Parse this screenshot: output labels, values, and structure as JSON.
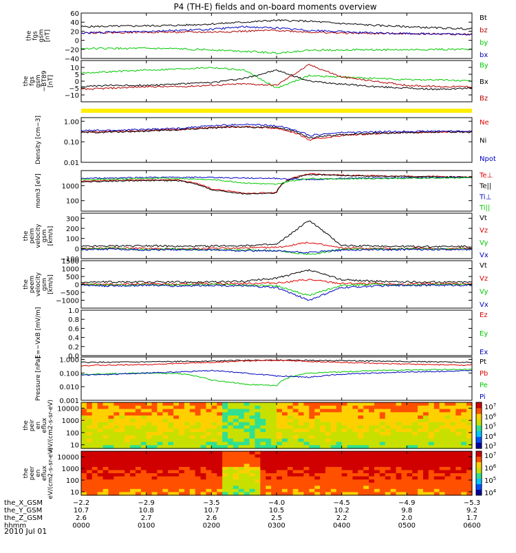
{
  "title": "P4 (TH-E) fields and on-board moments overview",
  "date": "2010 Jul 01",
  "colorbar": {
    "colors": [
      "#0000a0",
      "#0050ff",
      "#00c8ff",
      "#30e090",
      "#c8e000",
      "#ffd000",
      "#ff5000",
      "#d00000",
      "#000000"
    ]
  },
  "chart_data": [
    {
      "type": "line",
      "ylabel": "the fgs gsm [nT]",
      "ylim": [
        -40,
        60
      ],
      "yticks": [
        {
          "v": 60,
          "label": "60"
        },
        {
          "v": 40,
          "label": "40"
        },
        {
          "v": 20,
          "label": "20"
        },
        {
          "v": 0,
          "label": "0"
        },
        {
          "v": -20,
          "label": "−20"
        },
        {
          "v": -40,
          "label": "−40"
        }
      ],
      "x": [
        0,
        30,
        60,
        90,
        120,
        150,
        180,
        210,
        240,
        270,
        300,
        330,
        360
      ],
      "series": [
        {
          "name": "Bt",
          "color": "#000000",
          "values": [
            30,
            31,
            32,
            33,
            36,
            40,
            44,
            42,
            37,
            33,
            30,
            27,
            25
          ]
        },
        {
          "name": "bz",
          "color": "#b00000",
          "values": [
            17,
            17,
            18,
            18,
            18,
            20,
            22,
            18,
            16,
            15,
            15,
            14,
            13
          ]
        },
        {
          "name": "by",
          "color": "#00c800",
          "values": [
            -18,
            -18,
            -18,
            -19,
            -21,
            -24,
            -28,
            -22,
            -21,
            -21,
            -21,
            -20,
            -20
          ]
        },
        {
          "name": "bx",
          "color": "#0000c0",
          "values": [
            16,
            18,
            20,
            22,
            24,
            30,
            27,
            22,
            19,
            16,
            15,
            14,
            13
          ]
        }
      ]
    },
    {
      "type": "line",
      "ylabel": "the fgs gsm −BT89 [nT]",
      "ylim": [
        -15,
        15
      ],
      "yticks": [
        {
          "v": 10,
          "label": "10"
        },
        {
          "v": 5,
          "label": "5"
        },
        {
          "v": 0,
          "label": "0"
        },
        {
          "v": -5,
          "label": "−5"
        },
        {
          "v": -10,
          "label": "−10"
        }
      ],
      "x": [
        0,
        30,
        60,
        90,
        120,
        150,
        180,
        210,
        240,
        270,
        300,
        330,
        360
      ],
      "series": [
        {
          "name": "By",
          "color": "#00c800",
          "values": [
            6,
            7,
            8,
            9,
            10,
            8,
            -5,
            4,
            3,
            2,
            1,
            1,
            0
          ]
        },
        {
          "name": "Bx",
          "color": "#000000",
          "values": [
            -4,
            -3,
            -3,
            -2,
            -1,
            2,
            8,
            0,
            -2,
            -4,
            -5,
            -6,
            -5
          ]
        },
        {
          "name": "Bz",
          "color": "#b00000",
          "values": [
            -6,
            -5,
            -4,
            -4,
            -3,
            -2,
            -3,
            12,
            3,
            0,
            -3,
            -4,
            -4
          ]
        }
      ]
    },
    {
      "type": "line",
      "ylabel": "Density [cm−3]",
      "yscale": "log",
      "ylim": [
        0.01,
        1.5
      ],
      "yticks": [
        {
          "v": 1,
          "label": "1.00"
        },
        {
          "v": 0.1,
          "label": "0.10"
        },
        {
          "v": 0.01,
          "label": "0.01"
        }
      ],
      "x": [
        0,
        30,
        60,
        90,
        120,
        150,
        180,
        210,
        240,
        270,
        300,
        330,
        360
      ],
      "series": [
        {
          "name": "Ne",
          "color": "#e00000",
          "values": [
            0.3,
            0.32,
            0.35,
            0.4,
            0.5,
            0.55,
            0.45,
            0.12,
            0.2,
            0.25,
            0.28,
            0.3,
            0.3
          ]
        },
        {
          "name": "Ni",
          "color": "#000000",
          "values": [
            0.28,
            0.3,
            0.33,
            0.38,
            0.48,
            0.52,
            0.5,
            0.15,
            0.22,
            0.26,
            0.28,
            0.3,
            0.3
          ]
        },
        {
          "name": "Npot",
          "color": "#0000c0",
          "values": [
            0.35,
            0.36,
            0.4,
            0.45,
            0.6,
            0.7,
            0.6,
            0.2,
            0.28,
            0.3,
            0.32,
            0.33,
            0.33
          ]
        }
      ]
    },
    {
      "type": "line",
      "ylabel": "mom3 [eV]",
      "yscale": "log",
      "ylim": [
        20,
        10000
      ],
      "yticks": [
        {
          "v": 1000,
          "label": "1000"
        },
        {
          "v": 100,
          "label": "100"
        }
      ],
      "x": [
        0,
        30,
        60,
        90,
        120,
        150,
        180,
        210,
        240,
        270,
        300,
        330,
        360
      ],
      "series": [
        {
          "name": "Te⊥",
          "color": "#e00000",
          "values": [
            2000,
            2200,
            2400,
            2300,
            600,
            300,
            350,
            6000,
            5000,
            4500,
            4200,
            4000,
            3800
          ]
        },
        {
          "name": "Te||",
          "color": "#000000",
          "values": [
            1800,
            2000,
            2200,
            2100,
            500,
            280,
            320,
            5500,
            4700,
            4200,
            4000,
            3800,
            3600
          ]
        },
        {
          "name": "Ti⊥",
          "color": "#0000c0",
          "values": [
            3000,
            3200,
            3500,
            3500,
            3500,
            3200,
            3000,
            2500,
            3000,
            3200,
            3300,
            3400,
            3500
          ]
        },
        {
          "name": "Ti||",
          "color": "#00c800",
          "values": [
            2500,
            2700,
            3000,
            3000,
            2500,
            1500,
            1200,
            3000,
            2800,
            3000,
            3100,
            3200,
            3300
          ]
        }
      ]
    },
    {
      "type": "line",
      "ylabel": "the peim velocity gsm [km/s]",
      "ylim": [
        -100,
        350
      ],
      "yticks": [
        {
          "v": 300,
          "label": "300"
        },
        {
          "v": 200,
          "label": "200"
        },
        {
          "v": 100,
          "label": "100"
        },
        {
          "v": 0,
          "label": "0"
        },
        {
          "v": -100,
          "label": "−100"
        }
      ],
      "x": [
        0,
        30,
        60,
        90,
        120,
        150,
        180,
        210,
        240,
        270,
        300,
        330,
        360
      ],
      "series": [
        {
          "name": "Vt",
          "color": "#000000",
          "values": [
            20,
            25,
            30,
            20,
            25,
            30,
            40,
            280,
            30,
            25,
            20,
            20,
            20
          ]
        },
        {
          "name": "Vz",
          "color": "#e00000",
          "values": [
            0,
            5,
            0,
            -5,
            0,
            5,
            10,
            60,
            5,
            0,
            0,
            0,
            0
          ]
        },
        {
          "name": "Vy",
          "color": "#00c800",
          "values": [
            -5,
            0,
            -10,
            -5,
            -10,
            -15,
            -20,
            -60,
            -10,
            -5,
            -5,
            -5,
            -5
          ]
        },
        {
          "name": "Vx",
          "color": "#0000c0",
          "values": [
            -10,
            -5,
            -15,
            -10,
            -15,
            -20,
            -25,
            -40,
            -15,
            -10,
            -10,
            -10,
            -10
          ]
        }
      ]
    },
    {
      "type": "line",
      "ylabel": "the peem velocity gsm [km/s]",
      "ylim": [
        -1500,
        1500
      ],
      "yticks": [
        {
          "v": 1500,
          "label": "1500"
        },
        {
          "v": 1000,
          "label": "1000"
        },
        {
          "v": 500,
          "label": "500"
        },
        {
          "v": 0,
          "label": "0"
        },
        {
          "v": -500,
          "label": "−500"
        },
        {
          "v": -1000,
          "label": "−1000"
        }
      ],
      "x": [
        0,
        30,
        60,
        90,
        120,
        150,
        180,
        210,
        240,
        270,
        300,
        330,
        360
      ],
      "series": [
        {
          "name": "Vt",
          "color": "#000000",
          "values": [
            150,
            150,
            150,
            150,
            150,
            200,
            400,
            900,
            300,
            200,
            150,
            150,
            150
          ]
        },
        {
          "name": "Vz",
          "color": "#e00000",
          "values": [
            50,
            0,
            50,
            0,
            50,
            50,
            100,
            300,
            50,
            50,
            0,
            50,
            50
          ]
        },
        {
          "name": "Vy",
          "color": "#00c800",
          "values": [
            0,
            -50,
            0,
            -50,
            0,
            -50,
            -100,
            -700,
            -50,
            0,
            -50,
            0,
            0
          ]
        },
        {
          "name": "Vx",
          "color": "#0000c0",
          "values": [
            -50,
            -100,
            -50,
            -100,
            -50,
            -100,
            -200,
            -1000,
            -200,
            -100,
            -50,
            -50,
            -50
          ]
        }
      ]
    },
    {
      "type": "line",
      "ylabel": "E=−VxB [mV/m]",
      "ylim": [
        0,
        1
      ],
      "yticks": [
        {
          "v": 1,
          "label": "1.0"
        },
        {
          "v": 0.8,
          "label": "0.8"
        },
        {
          "v": 0.6,
          "label": "0.6"
        },
        {
          "v": 0.4,
          "label": "0.4"
        },
        {
          "v": 0.2,
          "label": "0.2"
        },
        {
          "v": 0,
          "label": "0.0"
        }
      ],
      "x": [],
      "series": [
        {
          "name": "Ez",
          "color": "#e00000",
          "values": []
        },
        {
          "name": "Ey",
          "color": "#00c800",
          "values": []
        },
        {
          "name": "Ex",
          "color": "#0000c0",
          "values": []
        }
      ]
    },
    {
      "type": "line",
      "ylabel": "Pressure [nPa]",
      "yscale": "log",
      "ylim": [
        0.001,
        1.5
      ],
      "yticks": [
        {
          "v": 1,
          "label": "1.000"
        },
        {
          "v": 0.1,
          "label": "0.100"
        },
        {
          "v": 0.01,
          "label": "0.010"
        },
        {
          "v": 0.001,
          "label": "0.001"
        }
      ],
      "x": [
        0,
        30,
        60,
        90,
        120,
        150,
        180,
        210,
        240,
        270,
        300,
        330,
        360
      ],
      "series": [
        {
          "name": "Pt",
          "color": "#000000",
          "values": [
            0.6,
            0.62,
            0.65,
            0.7,
            0.75,
            0.85,
            0.9,
            0.85,
            0.8,
            0.75,
            0.7,
            0.65,
            0.6
          ]
        },
        {
          "name": "Pb",
          "color": "#e00000",
          "values": [
            0.35,
            0.38,
            0.42,
            0.5,
            0.6,
            0.75,
            0.85,
            0.7,
            0.6,
            0.5,
            0.45,
            0.4,
            0.38
          ]
        },
        {
          "name": "Pe",
          "color": "#00c800",
          "values": [
            0.08,
            0.09,
            0.1,
            0.09,
            0.03,
            0.015,
            0.012,
            0.1,
            0.12,
            0.15,
            0.17,
            0.18,
            0.18
          ]
        },
        {
          "name": "Pi",
          "color": "#0000c0",
          "values": [
            0.07,
            0.08,
            0.1,
            0.12,
            0.15,
            0.1,
            0.06,
            0.05,
            0.08,
            0.1,
            0.12,
            0.13,
            0.15
          ]
        }
      ]
    },
    {
      "type": "heatmap",
      "ylabel": "the peir en eflux eV/(cm2-s-sr-eV)",
      "yscale": "log",
      "ylim": [
        5,
        30000
      ],
      "yticks": [
        {
          "v": 10000,
          "label": "10000"
        },
        {
          "v": 1000,
          "label": "1000"
        },
        {
          "v": 100,
          "label": "100"
        },
        {
          "v": 10,
          "label": "10"
        }
      ],
      "colorbar_ticks": [
        "10^7",
        "10^6",
        "10^5",
        "10^4",
        "10^3"
      ]
    },
    {
      "type": "heatmap",
      "ylabel": "the peer en eflux eV/(cm2-s-sr-eV)",
      "yscale": "log",
      "ylim": [
        5,
        30000
      ],
      "yticks": [
        {
          "v": 10000,
          "label": "10000"
        },
        {
          "v": 1000,
          "label": "1000"
        },
        {
          "v": 100,
          "label": "100"
        },
        {
          "v": 10,
          "label": "10"
        }
      ],
      "colorbar_ticks": [
        "10^7",
        "10^6",
        "10^5",
        "10^4"
      ]
    }
  ],
  "xaxis": {
    "row_labels": [
      "the_X_GSM",
      "the_Y_GSM",
      "the_Z_GSM",
      "hhmm"
    ],
    "ticks": [
      {
        "x": 0,
        "values": [
          "−2.2",
          "10.7",
          "2.6",
          "0000"
        ]
      },
      {
        "x": 60,
        "values": [
          "−2.9",
          "10.8",
          "2.7",
          "0100"
        ]
      },
      {
        "x": 120,
        "values": [
          "−3.5",
          "10.7",
          "2.6",
          "0200"
        ]
      },
      {
        "x": 180,
        "values": [
          "−4.0",
          "10.5",
          "2.5",
          "0300"
        ]
      },
      {
        "x": 240,
        "values": [
          "−4.5",
          "10.2",
          "2.2",
          "0400"
        ]
      },
      {
        "x": 300,
        "values": [
          "−4.9",
          "9.8",
          "2.0",
          "0500"
        ]
      },
      {
        "x": 360,
        "values": [
          "−5.3",
          "9.2",
          "1.7",
          "0600"
        ]
      }
    ]
  }
}
